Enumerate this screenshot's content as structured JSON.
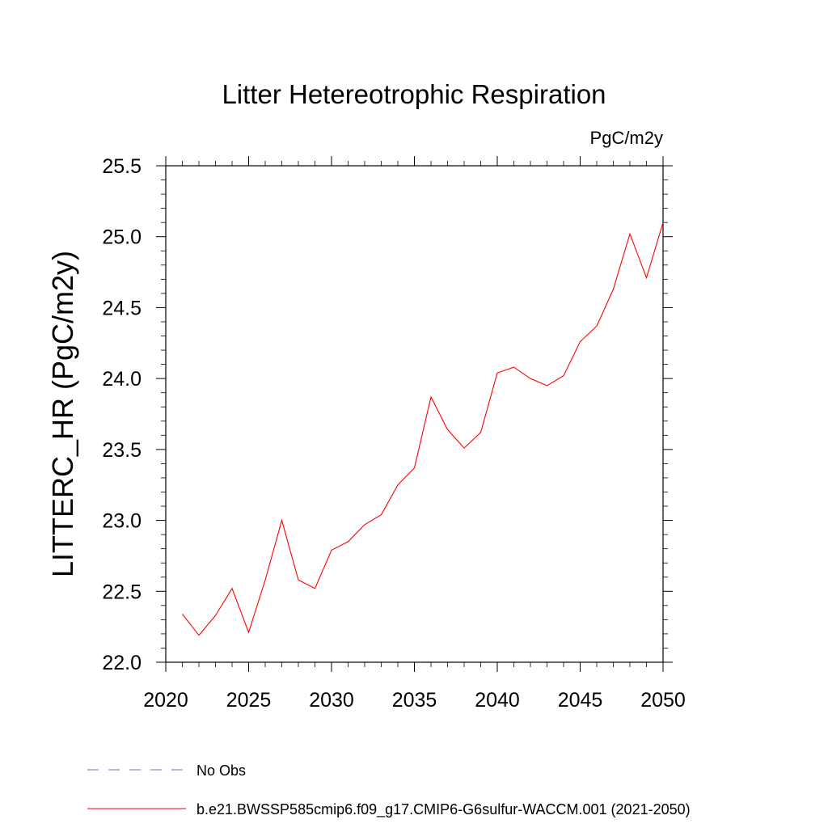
{
  "chart_data": {
    "type": "line",
    "title": "Litter Hetereotrophic Respiration",
    "units_label": "PgC/m2y",
    "ylabel": "LITTERC_HR  (PgC/m2y)",
    "xlabel": "",
    "xlim": [
      2020,
      2050
    ],
    "ylim": [
      22.0,
      25.5
    ],
    "x_ticks": [
      "2020",
      "2025",
      "2030",
      "2035",
      "2040",
      "2045",
      "2050"
    ],
    "y_ticks": [
      "22.0",
      "22.5",
      "23.0",
      "23.5",
      "24.0",
      "24.5",
      "25.0",
      "25.5"
    ],
    "grid": false,
    "legend_position": "bottom",
    "series": [
      {
        "name": "b.e21.BWSSP585cmip6.f09_g17.CMIP6-G6sulfur-WACCM.001 (2021-2050)",
        "color": "#ff0000",
        "style": "solid",
        "x": [
          2021,
          2022,
          2023,
          2024,
          2025,
          2026,
          2027,
          2028,
          2029,
          2030,
          2031,
          2032,
          2033,
          2034,
          2035,
          2036,
          2037,
          2038,
          2039,
          2040,
          2041,
          2042,
          2043,
          2044,
          2045,
          2046,
          2047,
          2048,
          2049,
          2050
        ],
        "y": [
          22.34,
          22.19,
          22.33,
          22.52,
          22.21,
          22.58,
          23.0,
          22.58,
          22.52,
          22.79,
          22.85,
          22.97,
          23.04,
          23.25,
          23.37,
          23.87,
          23.64,
          23.51,
          23.62,
          24.04,
          24.08,
          24.0,
          23.95,
          24.02,
          24.26,
          24.37,
          24.63,
          25.02,
          24.71,
          25.1
        ]
      },
      {
        "name": "No Obs",
        "color": "#7b68c8",
        "style": "dashed",
        "x": [],
        "y": []
      }
    ]
  }
}
